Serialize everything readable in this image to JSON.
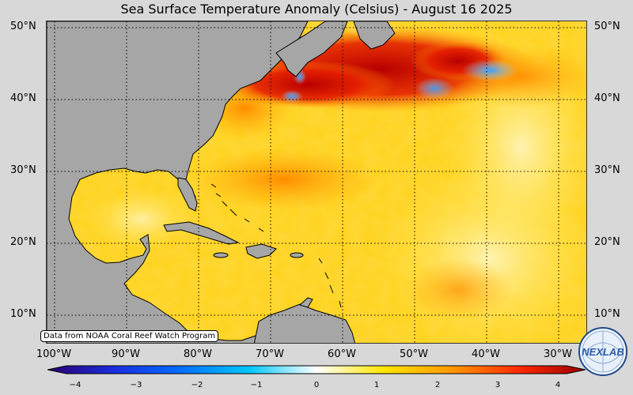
{
  "title": "Sea Surface Temperature Anomaly (Celsius) - August 16 2025",
  "latitudes": [
    "50°N",
    "40°N",
    "30°N",
    "20°N",
    "10°N"
  ],
  "longitudes": [
    "100°W",
    "90°W",
    "80°W",
    "70°W",
    "60°W",
    "50°W",
    "40°W",
    "30°W"
  ],
  "credit": "Data from NOAA Coral Reef Watch Program",
  "colorbar": {
    "ticks": [
      "−4",
      "−3",
      "−2",
      "−1",
      "0",
      "1",
      "2",
      "3",
      "4"
    ],
    "range": [
      -4,
      4
    ],
    "colors": [
      "#2a0070",
      "#1a2ee0",
      "#0070ff",
      "#00c8ff",
      "#ffffff",
      "#ffe600",
      "#ff9a00",
      "#ff2a00",
      "#990000"
    ]
  },
  "map_colors": {
    "land": "#a6a6a6",
    "ocean_warm": "#ffd21a",
    "ocean_hot": "#d40000",
    "ocean_cool": "#4aa8ff"
  },
  "logo": {
    "label": "NEXLAB",
    "icon": "nexlab-globe-logo"
  }
}
